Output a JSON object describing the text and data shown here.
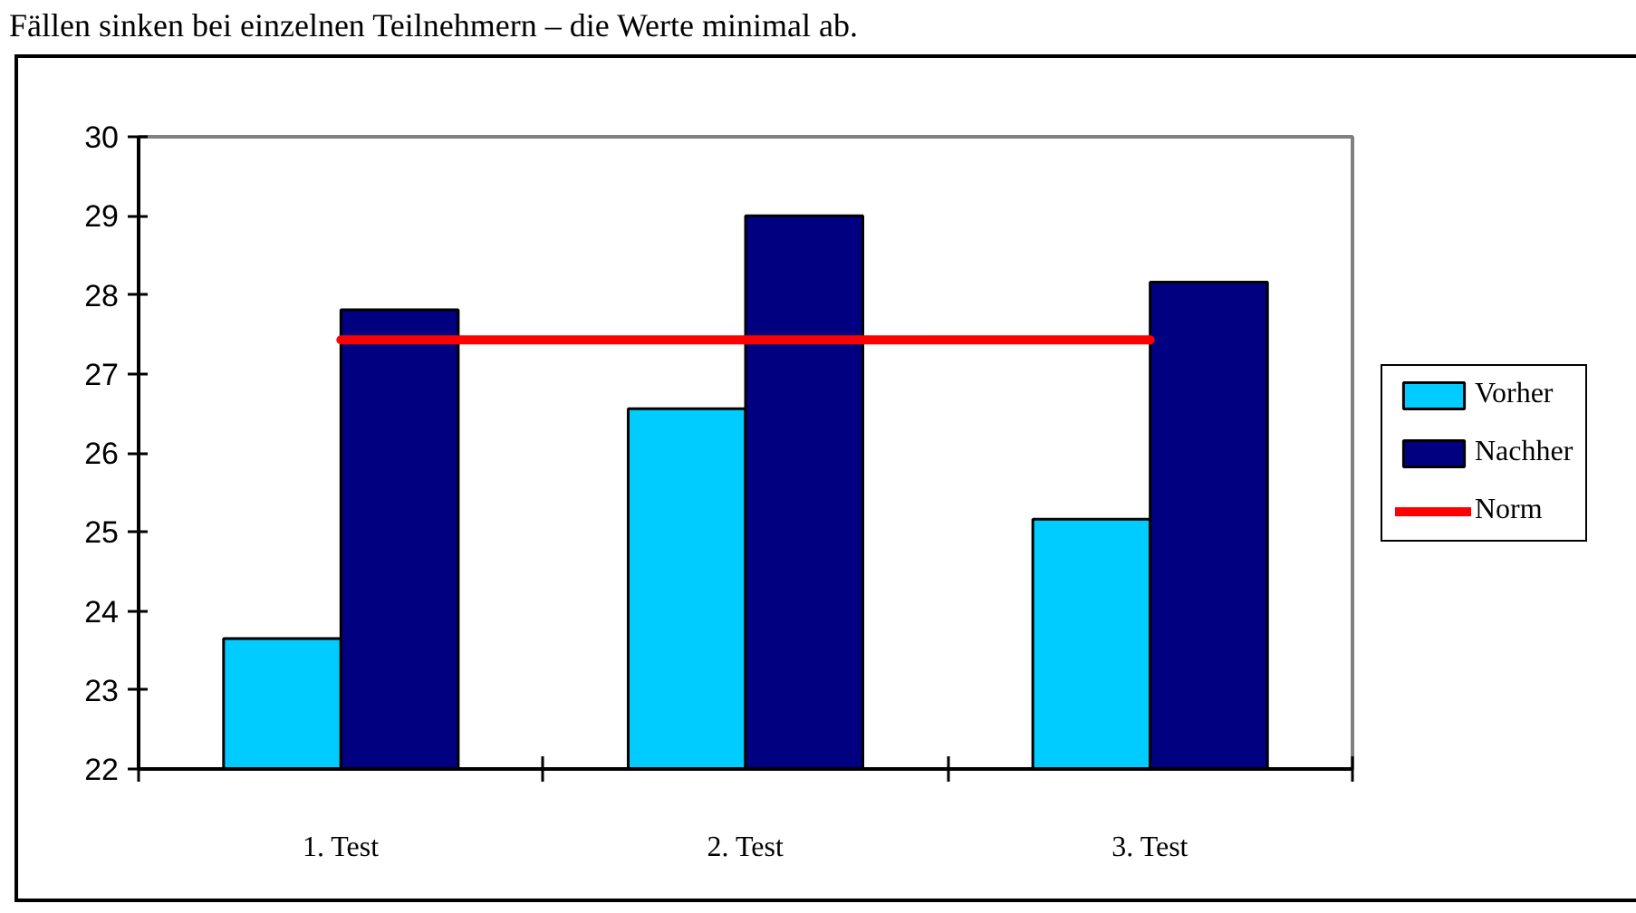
{
  "chart_data": {
    "type": "bar",
    "annotations": [
      "Fällen sinken bei einzelnen Teilnehmern – die Werte minimal ab."
    ],
    "categories": [
      "1. Test",
      "2. Test",
      "3. Test"
    ],
    "series": [
      {
        "name": "Vorher",
        "color": "#00ccff",
        "values": [
          23.65,
          26.56,
          25.16
        ]
      },
      {
        "name": "Nachher",
        "color": "#000080",
        "values": [
          27.81,
          29.0,
          28.16
        ]
      },
      {
        "name": "Norm",
        "type": "line",
        "color": "#ff0000",
        "values": [
          27.43,
          27.43,
          27.43
        ]
      }
    ],
    "ylim": [
      22,
      30
    ],
    "yticks": [
      22,
      23,
      24,
      25,
      26,
      27,
      28,
      29,
      30
    ],
    "grid": false,
    "legend": "right"
  }
}
